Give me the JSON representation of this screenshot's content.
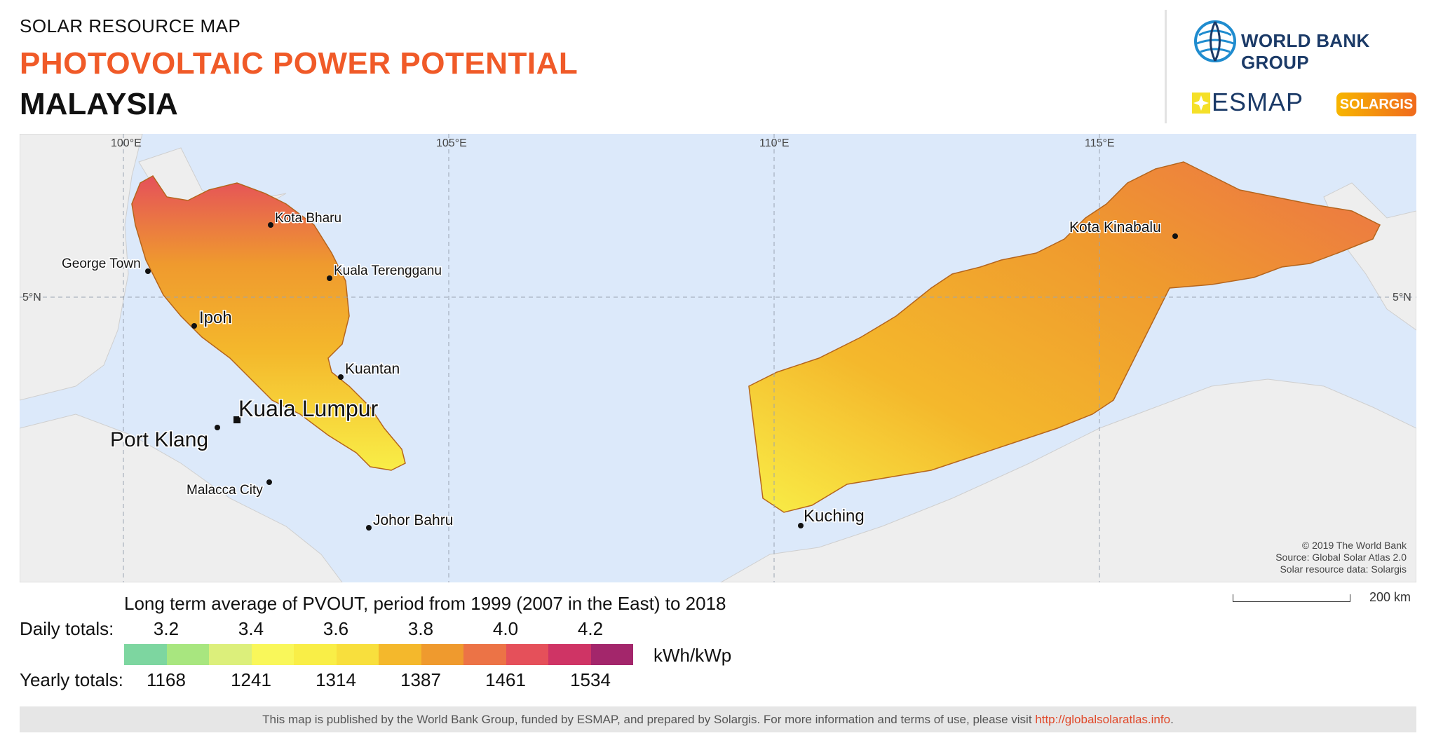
{
  "header": {
    "subtitle": "SOLAR RESOURCE MAP",
    "title": "PHOTOVOLTAIC POWER POTENTIAL",
    "country": "MALAYSIA"
  },
  "logos": {
    "world_bank": "WORLD BANK GROUP",
    "esmap": "ESMAP",
    "solargis": "SOLARGIS"
  },
  "map": {
    "graticule": {
      "longitudes": [
        "100°E",
        "105°E",
        "110°E",
        "115°E"
      ],
      "latitude": "5°N"
    },
    "cities": {
      "kota_bharu": "Kota Bharu",
      "george_town": "George Town",
      "kuala_terengganu": "Kuala Terengganu",
      "ipoh": "Ipoh",
      "kuantan": "Kuantan",
      "kuala_lumpur": "Kuala Lumpur",
      "port_klang": "Port Klang",
      "malacca_city": "Malacca City",
      "johor_bahru": "Johor Bahru",
      "kuching": "Kuching",
      "kota_kinabalu": "Kota Kinabalu"
    },
    "credits": [
      "© 2019 The World Bank",
      "Source: Global Solar Atlas 2.0",
      "Solar resource data: Solargis"
    ],
    "scale_bar": "200 km"
  },
  "legend": {
    "title": "Long term average of PVOUT, period from 1999 (2007 in the East) to 2018",
    "daily_label": "Daily totals:",
    "daily_values": [
      "3.2",
      "3.4",
      "3.6",
      "3.8",
      "4.0",
      "4.2"
    ],
    "yearly_label": "Yearly totals:",
    "yearly_values": [
      "1168",
      "1241",
      "1314",
      "1387",
      "1461",
      "1534"
    ],
    "unit": "kWh/kWp",
    "colors": [
      "#7dd6a0",
      "#a8e67f",
      "#dcef7b",
      "#f9f75a",
      "#f9ee47",
      "#f8df3d",
      "#f4b82c",
      "#ef9a2e",
      "#ec7346",
      "#e5505a",
      "#cf3465",
      "#a3266b"
    ]
  },
  "footer": {
    "text": "This map is published by the World Bank Group, funded by ESMAP, and prepared by Solargis. For more information and terms of use, please visit ",
    "link": "http://globalsolaratlas.info",
    "end": "."
  }
}
